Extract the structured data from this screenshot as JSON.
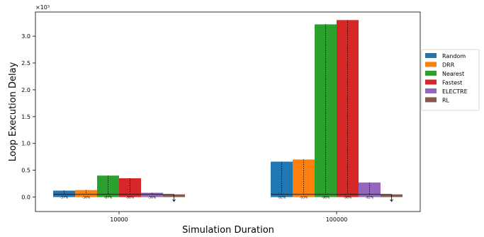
{
  "chart_data": {
    "type": "bar",
    "categories": [
      "10000",
      "100000"
    ],
    "series": [
      {
        "name": "Random",
        "color": "#1f77b4",
        "values": [
          0.12,
          0.66
        ]
      },
      {
        "name": "DRR",
        "color": "#ff7f0e",
        "values": [
          0.13,
          0.7
        ]
      },
      {
        "name": "Nearest",
        "color": "#2ca02c",
        "values": [
          0.4,
          3.22
        ]
      },
      {
        "name": "Fastest",
        "color": "#d62728",
        "values": [
          0.35,
          3.3
        ]
      },
      {
        "name": "ELECTRE",
        "color": "#9467bd",
        "values": [
          0.08,
          0.27
        ]
      },
      {
        "name": "RL",
        "color": "#8c564b",
        "values": [
          0.05,
          0.05
        ]
      }
    ],
    "reduction_labels": [
      [
        "-57%",
        "-56%",
        "-87%",
        "-86%",
        "-36%"
      ],
      [
        "-92%",
        "-93%",
        "-98%",
        "-98%",
        "-82%"
      ]
    ],
    "xlabel": "Simulation Duration",
    "ylabel": "Loop Execution Delay",
    "y_scale_label": "×10³",
    "ylim": [
      -0.27,
      3.45
    ],
    "yticks": [
      "0.0",
      "0.5",
      "1.0",
      "1.5",
      "2.0",
      "2.5",
      "3.0"
    ],
    "legend_position": "right",
    "grid": false
  }
}
